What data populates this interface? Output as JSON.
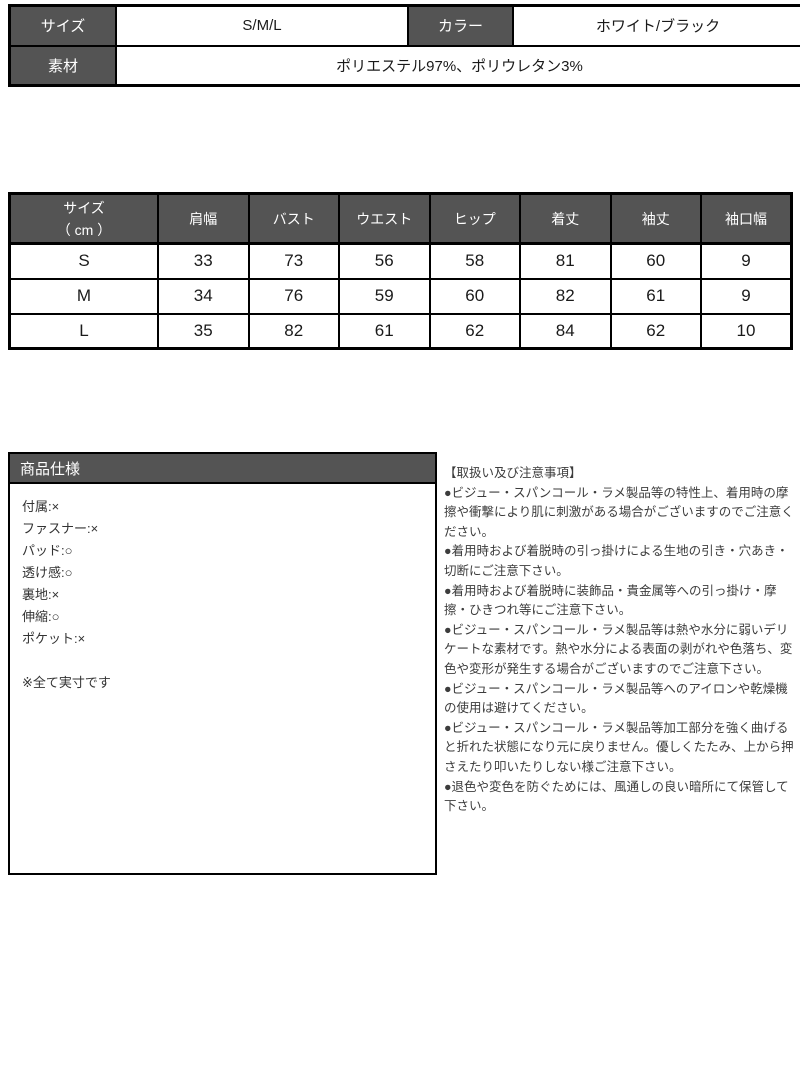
{
  "colors": {
    "header_bg": "#545454",
    "header_text": "#ffffff",
    "border": "#000000",
    "notice_text": "#3c3c3c"
  },
  "attr_table": {
    "size_label": "サイズ",
    "size_value": "S/M/L",
    "color_label": "カラー",
    "color_value": "ホワイト/ブラック",
    "material_label": "素材",
    "material_value": "ポリエステル97%、ポリウレタン3%"
  },
  "measurement_table": {
    "corner_title": "サイズ",
    "corner_unit": "（ cm ）",
    "columns": [
      "肩幅",
      "バスト",
      "ウエスト",
      "ヒップ",
      "着丈",
      "袖丈",
      "袖口幅"
    ],
    "rows": [
      {
        "size": "S",
        "values": [
          33,
          73,
          56,
          58,
          81,
          60,
          9
        ]
      },
      {
        "size": "M",
        "values": [
          34,
          76,
          59,
          60,
          82,
          61,
          9
        ]
      },
      {
        "size": "L",
        "values": [
          35,
          82,
          61,
          62,
          84,
          62,
          10
        ]
      }
    ]
  },
  "product_spec": {
    "title": "商品仕様",
    "items": [
      "付属:×",
      "ファスナー:×",
      "パッド:○",
      "透け感:○",
      "裏地:×",
      "伸縮:○",
      "ポケット:×"
    ],
    "note": "※全て実寸です"
  },
  "notices": {
    "title": "【取扱い及び注意事項】",
    "items": [
      "●ビジュー・スパンコール・ラメ製品等の特性上、着用時の摩擦や衝撃により肌に刺激がある場合がございますのでご注意ください。",
      "●着用時および着脱時の引っ掛けによる生地の引き・穴あき・切断にご注意下さい。",
      "●着用時および着脱時に装飾品・貴金属等への引っ掛け・摩擦・ひきつれ等にご注意下さい。",
      "●ビジュー・スパンコール・ラメ製品等は熱や水分に弱いデリケートな素材です。熱や水分による表面の剥がれや色落ち、変色や変形が発生する場合がございますのでご注意下さい。",
      "●ビジュー・スパンコール・ラメ製品等へのアイロンや乾燥機の使用は避けてください。",
      "●ビジュー・スパンコール・ラメ製品等加工部分を強く曲げると折れた状態になり元に戻りません。優しくたたみ、上から押さえたり叩いたりしない様ご注意下さい。",
      "●退色や変色を防ぐためには、風通しの良い暗所にて保管して下さい。"
    ]
  }
}
